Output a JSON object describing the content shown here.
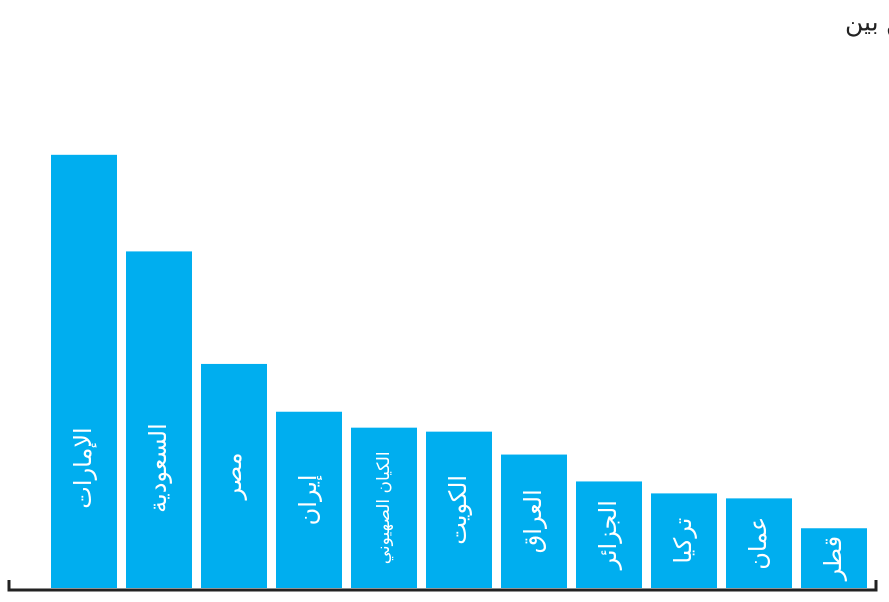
{
  "chart_data": {
    "type": "bar",
    "title": "أكبر الاستثمارات والعقود الصينية في المنطقة بعد مشروع الحزام والطريق بين",
    "categories": [
      "الإمارات",
      "السعودية",
      "مصر",
      "إيران",
      "الكيان الصهيوني",
      "الكويت",
      "العراق",
      "الجزائر",
      "تركيا",
      "عمان",
      "قطر"
    ],
    "values": [
      435,
      338,
      225,
      177,
      161,
      157,
      134,
      107,
      95,
      90,
      60
    ],
    "color": "#00aeef",
    "ylim": [
      0,
      480
    ]
  }
}
